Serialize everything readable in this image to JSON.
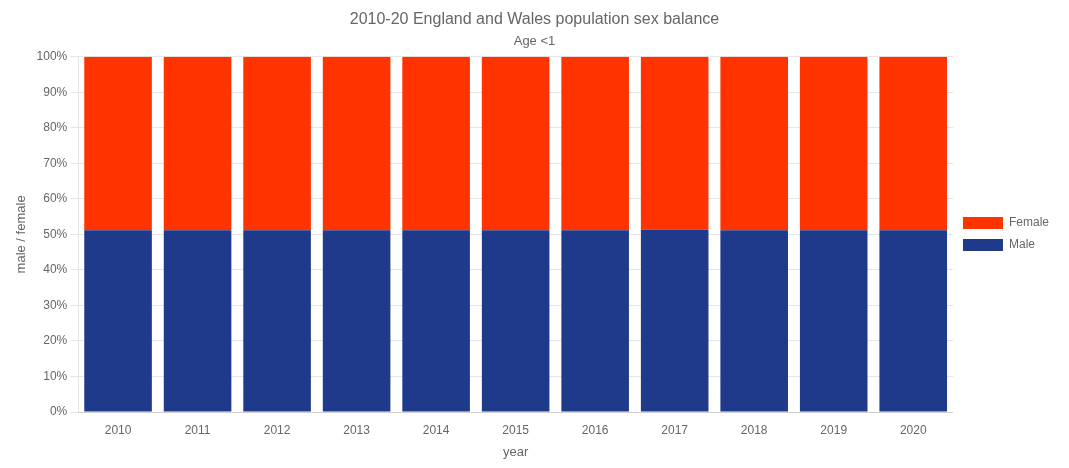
{
  "chart_data": {
    "type": "bar",
    "title": "2010-20 England and Wales population sex balance",
    "subtitle": "Age <1",
    "xlabel": "year",
    "ylabel": "male / female",
    "categories": [
      "2010",
      "2011",
      "2012",
      "2013",
      "2014",
      "2015",
      "2016",
      "2017",
      "2018",
      "2019",
      "2020"
    ],
    "series": [
      {
        "name": "Male",
        "color": "#1F3A8A",
        "values": [
          51.2,
          51.2,
          51.2,
          51.2,
          51.2,
          51.2,
          51.2,
          51.3,
          51.2,
          51.2,
          51.2
        ]
      },
      {
        "name": "Female",
        "color": "#FF3300",
        "values": [
          48.8,
          48.8,
          48.8,
          48.8,
          48.8,
          48.8,
          48.8,
          48.7,
          48.8,
          48.8,
          48.8
        ]
      }
    ],
    "stacked": true,
    "ylim": [
      0,
      100
    ],
    "yticks": [
      {
        "value": 0,
        "label": "0%"
      },
      {
        "value": 10,
        "label": "10%"
      },
      {
        "value": 20,
        "label": "20%"
      },
      {
        "value": 30,
        "label": "30%"
      },
      {
        "value": 40,
        "label": "40%"
      },
      {
        "value": 50,
        "label": "50%"
      },
      {
        "value": 60,
        "label": "60%"
      },
      {
        "value": 70,
        "label": "70%"
      },
      {
        "value": 80,
        "label": "80%"
      },
      {
        "value": 90,
        "label": "90%"
      },
      {
        "value": 100,
        "label": "100%"
      }
    ],
    "grid": true,
    "legend": "right"
  }
}
